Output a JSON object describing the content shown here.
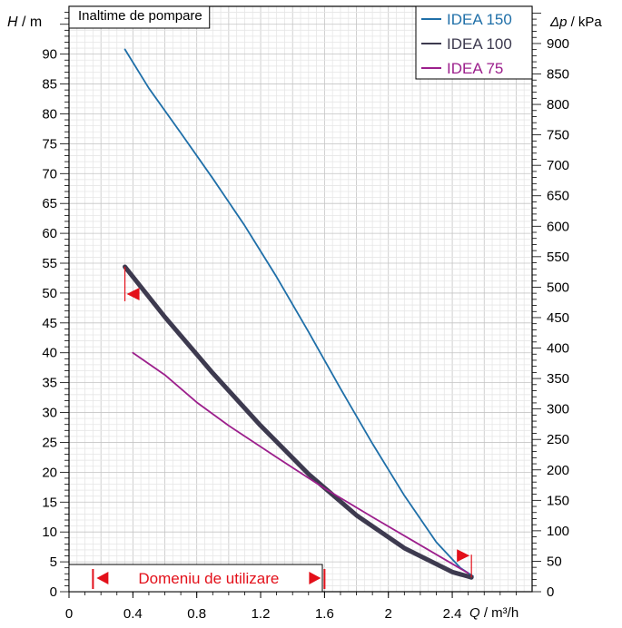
{
  "chart_data": {
    "type": "line",
    "title": "Inaltime de pompare",
    "xlabel": "Q / m³/h",
    "ylabel": "H / m",
    "y2label": "Δp / kPa",
    "xlim": [
      0,
      2.9
    ],
    "ylim": [
      0,
      98
    ],
    "y2lim": [
      0,
      961
    ],
    "x_ticks": [
      "0",
      "0.4",
      "0.8",
      "1.2",
      "1.6",
      "2",
      "2.4"
    ],
    "x_tick_values": [
      0,
      0.4,
      0.8,
      1.2,
      1.6,
      2.0,
      2.4
    ],
    "y_ticks": [
      0,
      5,
      10,
      15,
      20,
      25,
      30,
      35,
      40,
      45,
      50,
      55,
      60,
      65,
      70,
      75,
      80,
      85,
      90
    ],
    "y2_ticks": [
      0,
      50,
      100,
      150,
      200,
      250,
      300,
      350,
      400,
      450,
      500,
      550,
      600,
      650,
      700,
      750,
      800,
      850,
      900
    ],
    "grid": true,
    "legend_position": "top-right",
    "series": [
      {
        "name": "IDEA 150",
        "color": "#1f6fa8",
        "x": [
          0.35,
          0.5,
          0.7,
          0.9,
          1.1,
          1.3,
          1.5,
          1.7,
          1.9,
          2.1,
          2.3,
          2.45,
          2.53
        ],
        "y": [
          90.8,
          84.3,
          76.8,
          69.2,
          61.3,
          52.7,
          43.5,
          34.0,
          24.8,
          16.1,
          8.3,
          4.0,
          2.6
        ]
      },
      {
        "name": "IDEA 100",
        "color": "#3d3a4f",
        "x": [
          0.35,
          0.6,
          0.9,
          1.2,
          1.5,
          1.8,
          2.1,
          2.4,
          2.52
        ],
        "y": [
          54.4,
          46.0,
          36.6,
          27.8,
          19.7,
          12.8,
          7.3,
          3.3,
          2.4
        ]
      },
      {
        "name": "IDEA 75",
        "color": "#9c1f8c",
        "x": [
          0.4,
          0.6,
          0.8,
          1.0,
          1.3,
          1.6,
          1.9,
          2.2,
          2.5
        ],
        "y": [
          40.0,
          36.3,
          31.7,
          27.8,
          22.5,
          17.3,
          12.5,
          7.8,
          3.1
        ]
      }
    ],
    "domain_label": "Domeniu de utilizare",
    "domain_range": [
      0.15,
      1.6
    ],
    "operating_markers": [
      {
        "x": 0.35,
        "y": 54.4
      },
      {
        "x": 2.52,
        "y": 2.4
      }
    ]
  }
}
